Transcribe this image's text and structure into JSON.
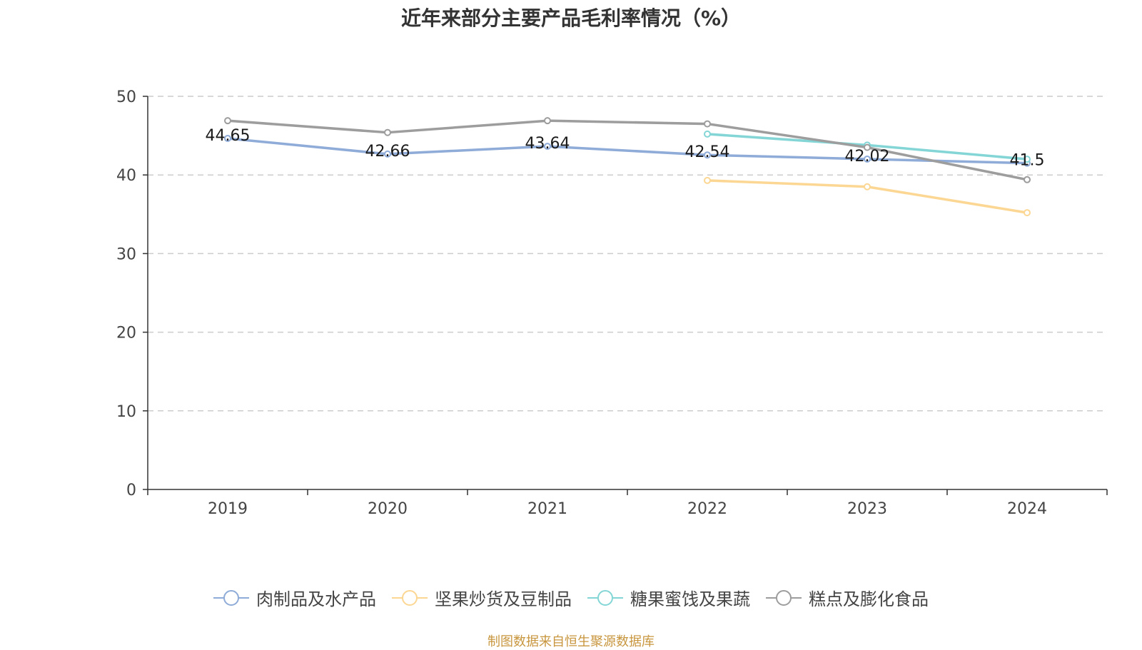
{
  "title": "近年来部分主要产品毛利率情况（%）",
  "source": "制图数据来自恒生聚源数据库",
  "chart_data": {
    "type": "line",
    "title": "近年来部分主要产品毛利率情况（%）",
    "categories": [
      "2019",
      "2020",
      "2021",
      "2022",
      "2023",
      "2024"
    ],
    "ylim": [
      0,
      50
    ],
    "yticks": [
      0,
      10,
      20,
      30,
      40,
      50
    ],
    "grid": "horizontal dashed",
    "legend": "bottom-center",
    "series": [
      {
        "name": "肉制品及水产品",
        "color": "#8fabd8",
        "values": [
          44.65,
          42.66,
          43.64,
          42.54,
          42.02,
          41.5
        ],
        "labels": [
          "44.65",
          "42.66",
          "43.64",
          "42.54",
          "42.02",
          "41.5"
        ]
      },
      {
        "name": "坚果炒货及豆制品",
        "color": "#fcd794",
        "values": [
          null,
          null,
          null,
          39.3,
          38.5,
          35.2
        ]
      },
      {
        "name": "糖果蜜饯及果蔬",
        "color": "#84d6d6",
        "values": [
          null,
          null,
          null,
          45.2,
          43.8,
          42.0
        ]
      },
      {
        "name": "糕点及膨化食品",
        "color": "#9d9d9d",
        "values": [
          46.9,
          45.4,
          46.9,
          46.5,
          43.5,
          39.4
        ]
      }
    ]
  }
}
